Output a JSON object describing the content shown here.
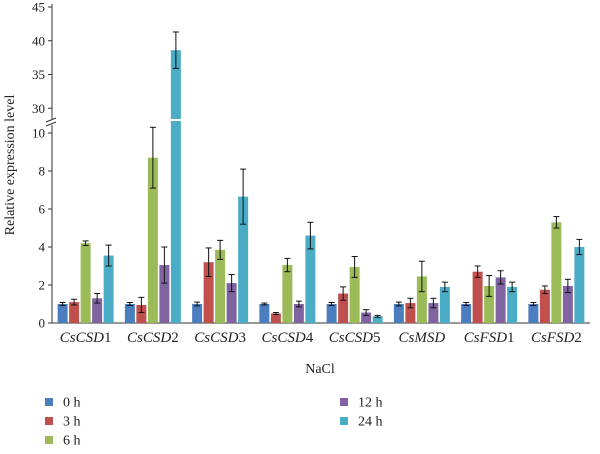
{
  "chart_data": {
    "type": "bar",
    "categories": [
      {
        "name": "CsCSD1",
        "italic": "CsCSD",
        "plain": "1"
      },
      {
        "name": "CsCSD2",
        "italic": "CsCSD",
        "plain": "2"
      },
      {
        "name": "CsCSD3",
        "italic": "CsCSD",
        "plain": "3"
      },
      {
        "name": "CsCSD4",
        "italic": "CsCSD",
        "plain": "4"
      },
      {
        "name": "CsCSD5",
        "italic": "CsCSD",
        "plain": "5"
      },
      {
        "name": "CsMSD",
        "italic": "CsMSD",
        "plain": ""
      },
      {
        "name": "CsFSD1",
        "italic": "CsFSD",
        "plain": "1"
      },
      {
        "name": "CsFSD2",
        "italic": "CsFSD",
        "plain": "2"
      }
    ],
    "series": [
      {
        "name": "0 h",
        "color": "#4a7ebf",
        "values": [
          1.0,
          1.0,
          1.0,
          1.0,
          1.0,
          1.0,
          1.0,
          1.0
        ],
        "errors": [
          0.08,
          0.08,
          0.1,
          0.05,
          0.08,
          0.1,
          0.08,
          0.08
        ]
      },
      {
        "name": "3 h",
        "color": "#c0504d",
        "values": [
          1.1,
          0.95,
          3.2,
          0.5,
          1.55,
          1.05,
          2.7,
          1.75
        ],
        "errors": [
          0.15,
          0.4,
          0.75,
          0.05,
          0.35,
          0.25,
          0.3,
          0.2
        ]
      },
      {
        "name": "6 h",
        "color": "#9bbb59",
        "values": [
          4.2,
          8.7,
          3.85,
          3.05,
          2.95,
          2.45,
          1.95,
          5.3
        ],
        "errors": [
          0.12,
          1.6,
          0.5,
          0.35,
          0.55,
          0.8,
          0.55,
          0.3
        ]
      },
      {
        "name": "12 h",
        "color": "#8064a2",
        "values": [
          1.3,
          3.05,
          2.1,
          1.0,
          0.55,
          1.05,
          2.4,
          1.95
        ],
        "errors": [
          0.25,
          0.95,
          0.45,
          0.15,
          0.15,
          0.25,
          0.35,
          0.35
        ]
      },
      {
        "name": "24 h",
        "color": "#4bacc6",
        "values": [
          3.55,
          38.6,
          6.65,
          4.6,
          0.35,
          1.9,
          1.9,
          4.0
        ],
        "errors": [
          0.55,
          2.7,
          1.45,
          0.7,
          0.05,
          0.25,
          0.25,
          0.4
        ]
      }
    ],
    "xlabel": "NaCl",
    "ylabel": "Relative expression level",
    "y_lower_ticks": [
      0,
      2,
      4,
      6,
      8,
      10
    ],
    "y_upper_ticks": [
      30,
      35,
      40,
      45
    ],
    "ylim_lower": [
      0,
      10
    ],
    "ylim_upper": [
      29,
      45
    ],
    "axis_break": true,
    "legend_position": "bottom-left",
    "grid": false
  }
}
